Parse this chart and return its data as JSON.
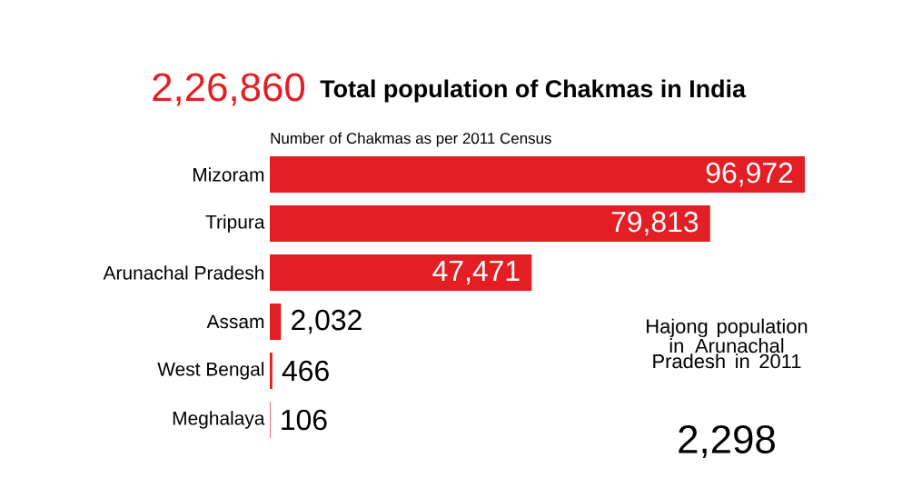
{
  "chart_data": {
    "type": "bar",
    "orientation": "horizontal",
    "title": "Total population of Chakmas in India",
    "subtitle": "Number of Chakmas as per 2011 Census",
    "categories": [
      "Mizoram",
      "Tripura",
      "Arunachal Pradesh",
      "Assam",
      "West Bengal",
      "Meghalaya"
    ],
    "values": [
      96972,
      79813,
      47471,
      2032,
      466,
      106
    ],
    "value_labels": [
      "96,972",
      "79,813",
      "47,471",
      "2,032",
      "466",
      "106"
    ],
    "color": "#e31e24",
    "tick_labels": "y",
    "annotations": [
      "2,26,860",
      "Hajong population in Arunachal Pradesh in 2011",
      "2,298"
    ]
  }
}
